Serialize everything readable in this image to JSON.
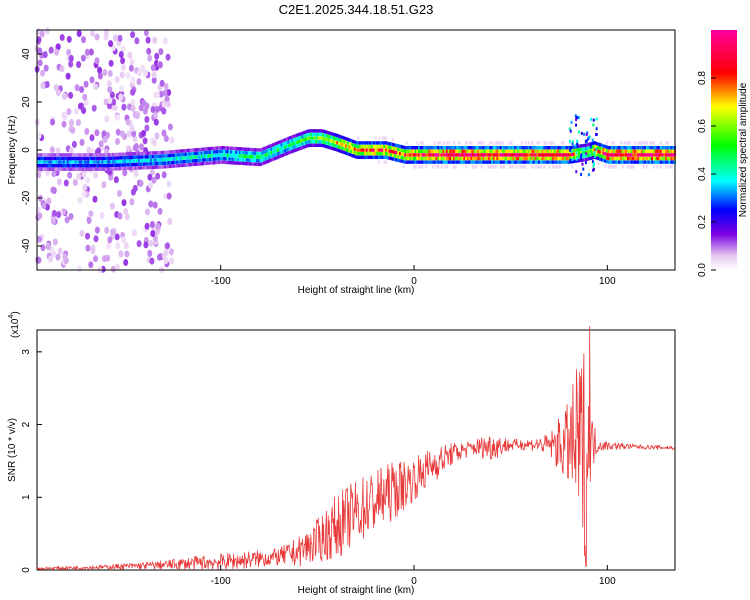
{
  "chart_data": [
    {
      "type": "heatmap",
      "title": "C2E1.2025.344.18.51.G23",
      "xlabel": "Height of straight line (km)",
      "ylabel": "Frequency (Hz)",
      "xlim": [
        -195,
        135
      ],
      "ylim": [
        -50,
        50
      ],
      "xticks": [
        -100,
        0,
        100
      ],
      "xtick_labels": [
        "-100",
        "0",
        "100"
      ],
      "yticks": [
        -40,
        -20,
        0,
        20,
        40
      ],
      "ytick_labels": [
        "-40",
        "-20",
        "0",
        "20",
        "40"
      ],
      "ridge": {
        "x": [
          -195,
          -160,
          -130,
          -100,
          -80,
          -65,
          -55,
          -48,
          -40,
          -30,
          -15,
          -5,
          0,
          15,
          40,
          80,
          88,
          93,
          100,
          135
        ],
        "frequency": [
          -5,
          -5,
          -4,
          -2,
          -3,
          2,
          5,
          5,
          3,
          0,
          0,
          -2,
          -2,
          -2,
          -2,
          -2,
          -1,
          0,
          -2,
          -2
        ],
        "amplitude": [
          0.35,
          0.35,
          0.4,
          0.45,
          0.5,
          0.5,
          0.55,
          0.6,
          0.75,
          0.85,
          0.9,
          0.85,
          0.9,
          1.0,
          1.0,
          0.95,
          0.5,
          0.8,
          1.0,
          1.0
        ]
      },
      "colorbar": {
        "label": "Normalized spectral amplitude",
        "range": [
          0,
          1
        ],
        "ticks": [
          0.0,
          0.2,
          0.4,
          0.6,
          0.8
        ],
        "tick_labels": [
          "0.0",
          "0.2",
          "0.4",
          "0.6",
          "0.8"
        ]
      }
    },
    {
      "type": "line",
      "xlabel": "Height of straight line (km)",
      "ylabel": "SNR (10 * v/v)",
      "exponent_label": "(x10",
      "exponent": "4",
      "xlim": [
        -195,
        135
      ],
      "ylim": [
        0,
        3.3
      ],
      "xticks": [
        -100,
        0,
        100
      ],
      "xtick_labels": [
        "-100",
        "0",
        "100"
      ],
      "yticks": [
        0,
        1,
        2,
        3
      ],
      "ytick_labels": [
        "0",
        "1",
        "2",
        "3"
      ],
      "series": [
        {
          "name": "SNR",
          "color": "#e83a3a",
          "x": [
            -195,
            -160,
            -130,
            -110,
            -90,
            -70,
            -60,
            -50,
            -40,
            -30,
            -20,
            -10,
            0,
            10,
            20,
            30,
            40,
            50,
            60,
            70,
            80,
            85,
            88,
            90,
            92,
            95,
            100,
            110,
            120,
            135
          ],
          "mean": [
            0.02,
            0.04,
            0.07,
            0.1,
            0.13,
            0.18,
            0.25,
            0.4,
            0.6,
            0.8,
            0.95,
            1.1,
            1.25,
            1.45,
            1.6,
            1.68,
            1.7,
            1.72,
            1.73,
            1.72,
            1.72,
            1.7,
            1.65,
            1.6,
            1.75,
            1.72,
            1.71,
            1.7,
            1.69,
            1.68
          ],
          "spread": [
            0.02,
            0.03,
            0.06,
            0.1,
            0.12,
            0.12,
            0.2,
            0.3,
            0.45,
            0.45,
            0.45,
            0.4,
            0.3,
            0.25,
            0.15,
            0.1,
            0.2,
            0.08,
            0.08,
            0.15,
            0.6,
            1.2,
            1.5,
            1.0,
            0.4,
            0.1,
            0.06,
            0.04,
            0.03,
            0.03
          ],
          "peak": {
            "x": 91,
            "y": 3.35
          },
          "trough": {
            "x": 89,
            "y": 0.05
          }
        }
      ]
    }
  ]
}
